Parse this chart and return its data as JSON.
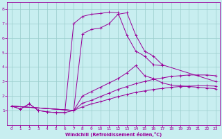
{
  "xlabel": "Windchill (Refroidissement éolien,°C)",
  "background_color": "#c8eef0",
  "line_color": "#990099",
  "xlim": [
    -0.5,
    23.5
  ],
  "ylim": [
    0,
    8.5
  ],
  "xticks": [
    0,
    1,
    2,
    3,
    4,
    5,
    6,
    7,
    8,
    9,
    10,
    11,
    12,
    13,
    14,
    15,
    16,
    17,
    18,
    19,
    20,
    21,
    22,
    23
  ],
  "yticks": [
    1,
    2,
    3,
    4,
    5,
    6,
    7,
    8
  ],
  "grid_color": "#99cccc",
  "curve1_x": [
    0,
    1,
    2,
    3,
    4,
    5,
    6,
    7,
    8,
    9,
    10,
    11,
    12,
    13,
    14,
    15,
    16,
    17
  ],
  "curve1_y": [
    1.3,
    1.1,
    1.45,
    1.0,
    0.9,
    0.85,
    0.85,
    7.0,
    7.5,
    7.65,
    7.7,
    7.8,
    7.75,
    6.2,
    5.1,
    4.75,
    4.15,
    4.1
  ],
  "curve2_x": [
    0,
    1,
    2,
    3,
    4,
    5,
    6,
    7,
    8,
    9,
    10,
    11,
    12,
    13,
    14,
    15,
    16,
    17,
    23
  ],
  "curve2_y": [
    1.3,
    1.1,
    1.45,
    1.0,
    0.9,
    0.85,
    0.85,
    1.0,
    6.3,
    6.6,
    6.7,
    7.0,
    7.65,
    7.75,
    6.2,
    5.1,
    4.75,
    4.15,
    3.0
  ],
  "curve3_x": [
    0,
    7,
    8,
    9,
    10,
    11,
    12,
    13,
    14,
    15,
    16,
    17,
    18,
    19,
    20,
    21,
    22,
    23
  ],
  "curve3_y": [
    1.3,
    1.0,
    2.0,
    2.3,
    2.6,
    2.9,
    3.2,
    3.6,
    4.1,
    3.4,
    3.2,
    2.9,
    2.75,
    2.7,
    2.65,
    2.6,
    2.55,
    2.5
  ],
  "curve4_x": [
    0,
    7,
    8,
    9,
    10,
    11,
    12,
    13,
    14,
    15,
    16,
    17,
    18,
    19,
    20,
    21,
    22,
    23
  ],
  "curve4_y": [
    1.3,
    1.0,
    1.5,
    1.7,
    1.95,
    2.2,
    2.45,
    2.65,
    2.85,
    3.0,
    3.15,
    3.25,
    3.35,
    3.4,
    3.45,
    3.45,
    3.45,
    3.4
  ],
  "curve5_x": [
    0,
    7,
    8,
    9,
    10,
    11,
    12,
    13,
    14,
    15,
    16,
    17,
    18,
    19,
    20,
    21,
    22,
    23
  ],
  "curve5_y": [
    1.3,
    1.0,
    1.25,
    1.45,
    1.6,
    1.78,
    1.95,
    2.1,
    2.25,
    2.35,
    2.45,
    2.52,
    2.6,
    2.65,
    2.68,
    2.7,
    2.7,
    2.68
  ]
}
